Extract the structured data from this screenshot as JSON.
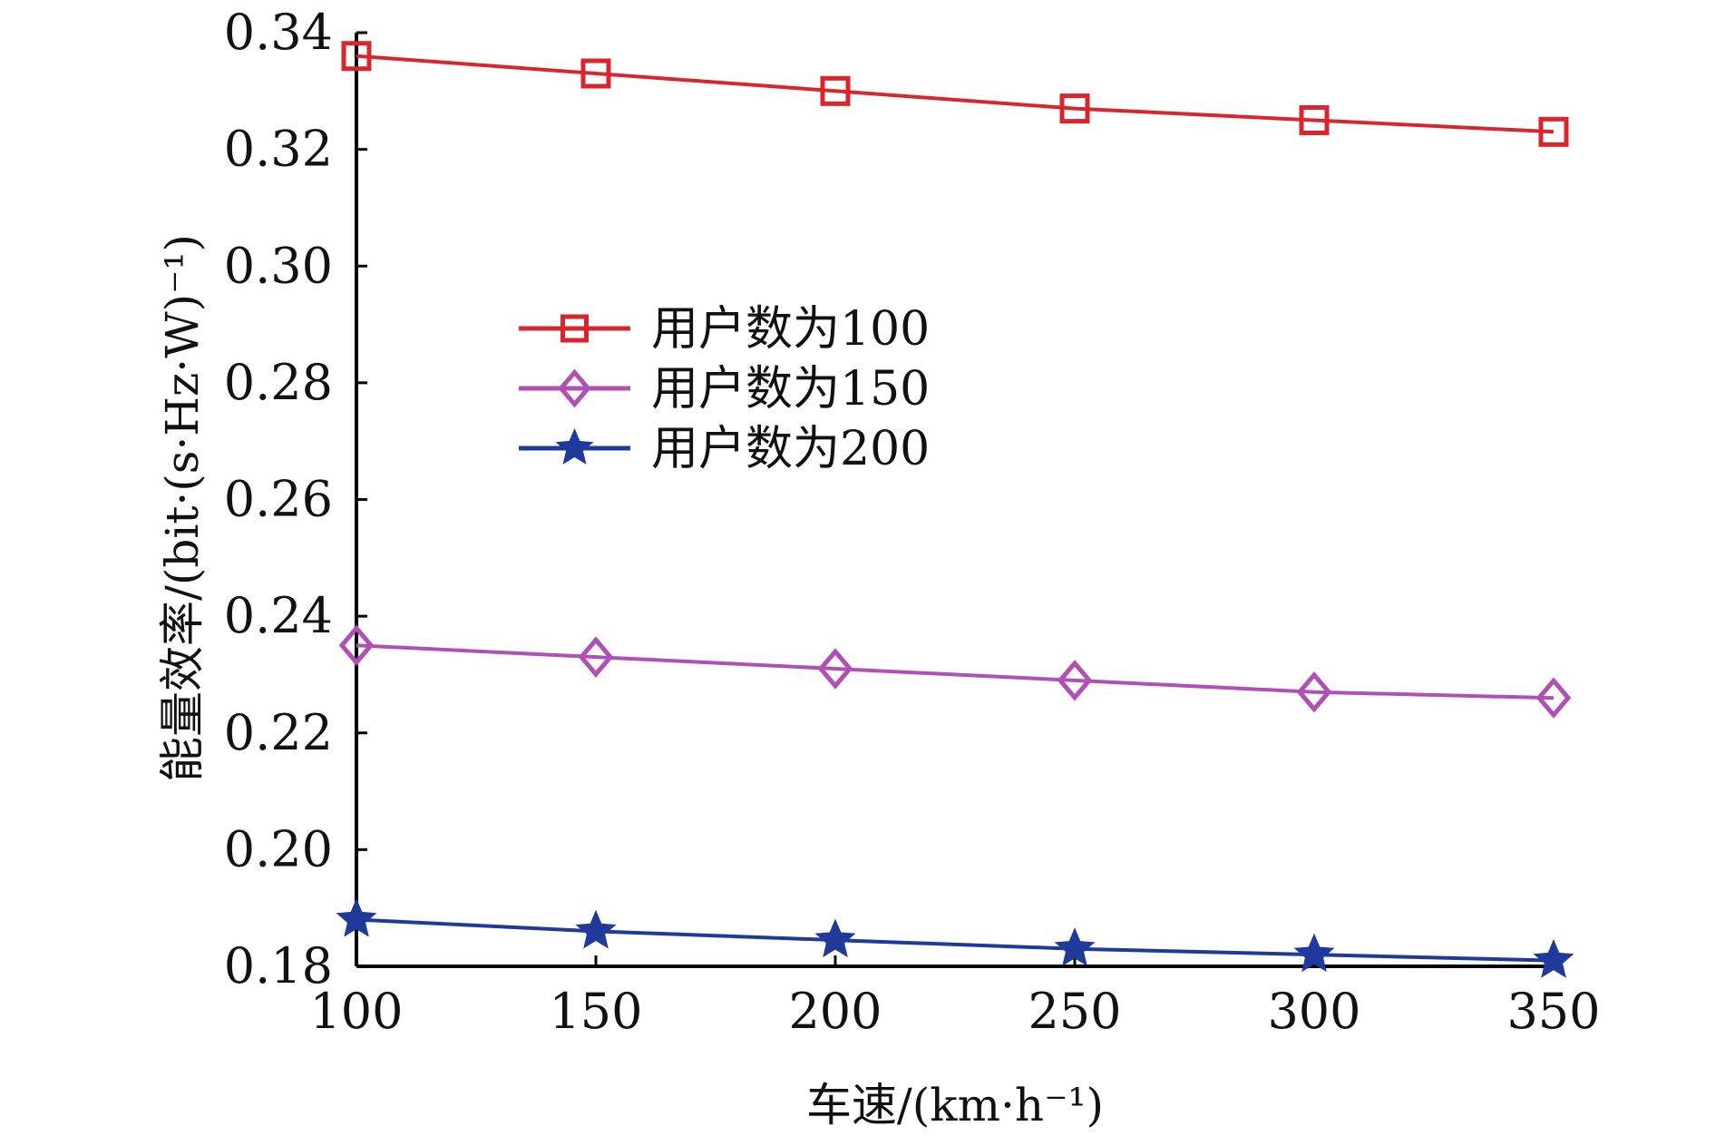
{
  "chart_data": {
    "type": "line",
    "title": "",
    "xlabel": "车速/(km·h⁻¹)",
    "ylabel": "能量效率/(bit·(s·Hz·W)⁻¹)",
    "x": [
      100,
      150,
      200,
      250,
      300,
      350
    ],
    "xlim": [
      100,
      350
    ],
    "ylim": [
      0.18,
      0.34
    ],
    "x_ticks": [
      "100",
      "150",
      "200",
      "250",
      "300",
      "350"
    ],
    "y_ticks": [
      "0.18",
      "0.20",
      "0.22",
      "0.24",
      "0.26",
      "0.28",
      "0.30",
      "0.32",
      "0.34"
    ],
    "grid": false,
    "legend_position": "upper-left-center",
    "series": [
      {
        "name": "用户数为100",
        "color": "#d9262e",
        "marker": "square",
        "values": [
          0.336,
          0.333,
          0.33,
          0.327,
          0.325,
          0.323
        ]
      },
      {
        "name": "用户数为150",
        "color": "#b04fb4",
        "marker": "diamond",
        "values": [
          0.235,
          0.233,
          0.231,
          0.229,
          0.227,
          0.226
        ]
      },
      {
        "name": "用户数为200",
        "color": "#1f3a9a",
        "marker": "star",
        "values": [
          0.188,
          0.186,
          0.1845,
          0.183,
          0.182,
          0.181
        ]
      }
    ]
  }
}
